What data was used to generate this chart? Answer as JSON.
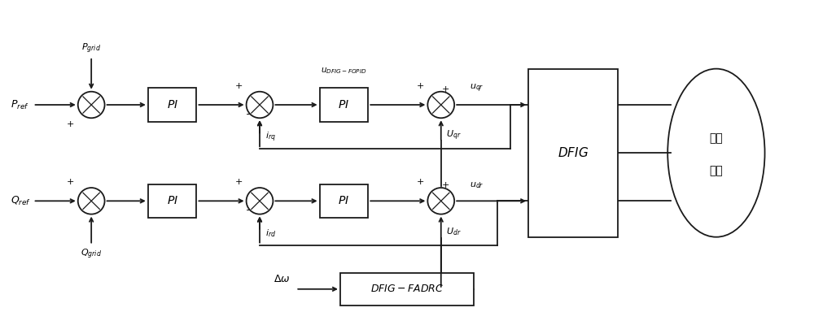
{
  "bg_color": "#ffffff",
  "line_color": "#1a1a1a",
  "box_color": "#ffffff",
  "box_edge": "#1a1a1a",
  "fig_width": 10.0,
  "fig_height": 4.0,
  "labels": {
    "P_ref": "$P_{ref}$",
    "Q_ref": "$Q_{ref}$",
    "P_grid": "$P_{grid}$",
    "Q_grid": "$Q_{grid}$",
    "u_DFIG_FOPID": "$u_{DFIG-FOPID}$",
    "u_qr": "$u_{qr}$",
    "u_dr": "$u_{dr}$",
    "U_qr": "$U_{qr}$",
    "U_dr": "$U_{dr}$",
    "i_rq": "$i_{rq}$",
    "i_rd": "$i_{rd}$",
    "delta_omega": "$\\Delta\\omega$",
    "PI": "$PI$",
    "DFIG": "$DFIG$",
    "DFIG_FADRC": "$DFIG-FADRC$",
    "elec_system_line1": "电力",
    "elec_system_line2": "系统"
  }
}
